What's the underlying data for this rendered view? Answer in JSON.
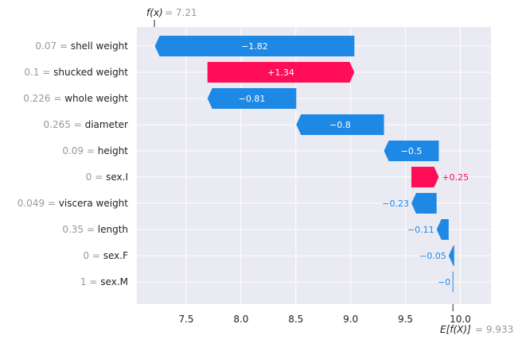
{
  "chart_data": {
    "type": "waterfall",
    "fx_label": "f(x)",
    "fx_value": "= 7.21",
    "efx_label": "E[f(X)]",
    "efx_value": "= 9.933",
    "base_value": 9.933,
    "final_value": 7.21,
    "xlim": [
      7.05,
      10.28
    ],
    "xticks": [
      "7.5",
      "8.0",
      "8.5",
      "9.0",
      "9.5",
      "10.0"
    ],
    "features": [
      {
        "value": "0.07",
        "name": "shell weight",
        "start": 9.034,
        "end": 7.214,
        "label": "−1.82"
      },
      {
        "value": "0.1",
        "name": "shucked weight",
        "start": 7.694,
        "end": 9.034,
        "label": "+1.34"
      },
      {
        "value": "0.226",
        "name": "whole weight",
        "start": 8.504,
        "end": 7.694,
        "label": "−0.81"
      },
      {
        "value": "0.265",
        "name": "diameter",
        "start": 9.304,
        "end": 8.504,
        "label": "−0.8"
      },
      {
        "value": "0.09",
        "name": "height",
        "start": 9.804,
        "end": 9.304,
        "label": "−0.5"
      },
      {
        "value": "0",
        "name": "sex.I",
        "start": 9.554,
        "end": 9.804,
        "label": "+0.25"
      },
      {
        "value": "0.049",
        "name": "viscera weight",
        "start": 9.784,
        "end": 9.554,
        "label": "−0.23"
      },
      {
        "value": "0.35",
        "name": "length",
        "start": 9.894,
        "end": 9.784,
        "label": "−0.11"
      },
      {
        "value": "0",
        "name": "sex.F",
        "start": 9.944,
        "end": 9.894,
        "label": "−0.05"
      },
      {
        "value": "1",
        "name": "sex.M",
        "start": 9.933,
        "end": 9.933,
        "label": "−0"
      }
    ],
    "colors": {
      "positive": "#ff0d57",
      "negative": "#1e88e5",
      "background": "#eaeaf2",
      "grid": "#ffffff",
      "muted_text": "#999999",
      "text": "#222222"
    }
  }
}
